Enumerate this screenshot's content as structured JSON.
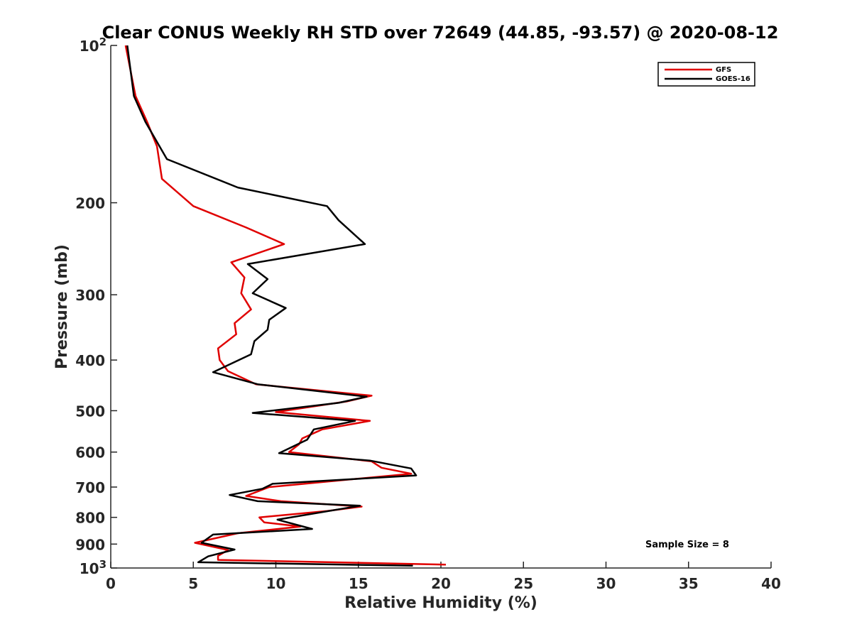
{
  "chart_data": {
    "type": "line",
    "title": "Clear CONUS Weekly RH STD over 72649 (44.85, -93.57) @ 2020-08-12",
    "xlabel": "Relative Humidity (%)",
    "ylabel": "Pressure (mb)",
    "xlim": [
      0,
      40
    ],
    "ylim": [
      100,
      1000
    ],
    "y_scale": "log",
    "y_reversed": true,
    "grid": false,
    "legend_position": "top-right",
    "x_ticks": [
      0,
      5,
      10,
      15,
      20,
      25,
      30,
      35,
      40
    ],
    "x_tick_labels": [
      "0",
      "5",
      "10",
      "15",
      "20",
      "25",
      "30",
      "35",
      "40"
    ],
    "y_ticks": [
      100,
      200,
      300,
      400,
      500,
      600,
      700,
      800,
      900,
      1000
    ],
    "y_tick_labels": [
      {
        "base": "10",
        "exp": "2"
      },
      {
        "base": "200",
        "exp": ""
      },
      {
        "base": "300",
        "exp": ""
      },
      {
        "base": "400",
        "exp": ""
      },
      {
        "base": "500",
        "exp": ""
      },
      {
        "base": "600",
        "exp": ""
      },
      {
        "base": "700",
        "exp": ""
      },
      {
        "base": "800",
        "exp": ""
      },
      {
        "base": "900",
        "exp": ""
      },
      {
        "base": "10",
        "exp": "3"
      }
    ],
    "annotation": "Sample Size = 8",
    "series": [
      {
        "name": "GFS",
        "color": "#e00000",
        "points": [
          [
            0.9,
            100
          ],
          [
            1.5,
            125
          ],
          [
            2.2,
            140
          ],
          [
            2.8,
            156
          ],
          [
            3.1,
            180
          ],
          [
            5.0,
            203
          ],
          [
            8.2,
            223
          ],
          [
            10.5,
            240
          ],
          [
            7.3,
            260
          ],
          [
            8.1,
            278
          ],
          [
            7.9,
            298
          ],
          [
            8.5,
            320
          ],
          [
            7.5,
            340
          ],
          [
            7.6,
            357
          ],
          [
            6.5,
            380
          ],
          [
            6.6,
            400
          ],
          [
            7.1,
            420
          ],
          [
            8.8,
            445
          ],
          [
            15.8,
            468
          ],
          [
            14.3,
            480
          ],
          [
            10.0,
            503
          ],
          [
            15.7,
            523
          ],
          [
            12.8,
            543
          ],
          [
            11.6,
            565
          ],
          [
            11.4,
            580
          ],
          [
            10.8,
            600
          ],
          [
            15.8,
            625
          ],
          [
            16.4,
            643
          ],
          [
            18.2,
            660
          ],
          [
            9.6,
            700
          ],
          [
            8.2,
            728
          ],
          [
            10.3,
            745
          ],
          [
            15.2,
            763
          ],
          [
            13.1,
            778
          ],
          [
            9.0,
            800
          ],
          [
            9.3,
            818
          ],
          [
            11.5,
            833
          ],
          [
            7.7,
            858
          ],
          [
            5.1,
            895
          ],
          [
            7.1,
            924
          ],
          [
            6.5,
            948
          ],
          [
            6.5,
            965
          ],
          [
            20.3,
            985
          ]
        ]
      },
      {
        "name": "GOES-16",
        "color": "#000000",
        "points": [
          [
            1.0,
            100
          ],
          [
            1.4,
            125
          ],
          [
            2.1,
            140
          ],
          [
            3.4,
            165
          ],
          [
            7.7,
            187
          ],
          [
            13.1,
            203
          ],
          [
            13.8,
            216
          ],
          [
            15.4,
            240
          ],
          [
            8.3,
            262
          ],
          [
            9.5,
            280
          ],
          [
            8.6,
            298
          ],
          [
            10.6,
            318
          ],
          [
            9.6,
            335
          ],
          [
            9.5,
            350
          ],
          [
            8.7,
            368
          ],
          [
            8.5,
            390
          ],
          [
            6.2,
            422
          ],
          [
            8.9,
            445
          ],
          [
            15.5,
            470
          ],
          [
            13.8,
            483
          ],
          [
            8.6,
            505
          ],
          [
            14.8,
            523
          ],
          [
            12.3,
            543
          ],
          [
            11.9,
            568
          ],
          [
            10.2,
            603
          ],
          [
            15.7,
            623
          ],
          [
            18.2,
            645
          ],
          [
            18.5,
            665
          ],
          [
            9.8,
            690
          ],
          [
            9.2,
            705
          ],
          [
            7.2,
            725
          ],
          [
            8.9,
            745
          ],
          [
            15.1,
            760
          ],
          [
            10.1,
            808
          ],
          [
            12.2,
            842
          ],
          [
            6.2,
            863
          ],
          [
            5.5,
            895
          ],
          [
            7.5,
            922
          ],
          [
            5.9,
            950
          ],
          [
            5.3,
            975
          ],
          [
            18.3,
            990
          ]
        ]
      }
    ]
  }
}
